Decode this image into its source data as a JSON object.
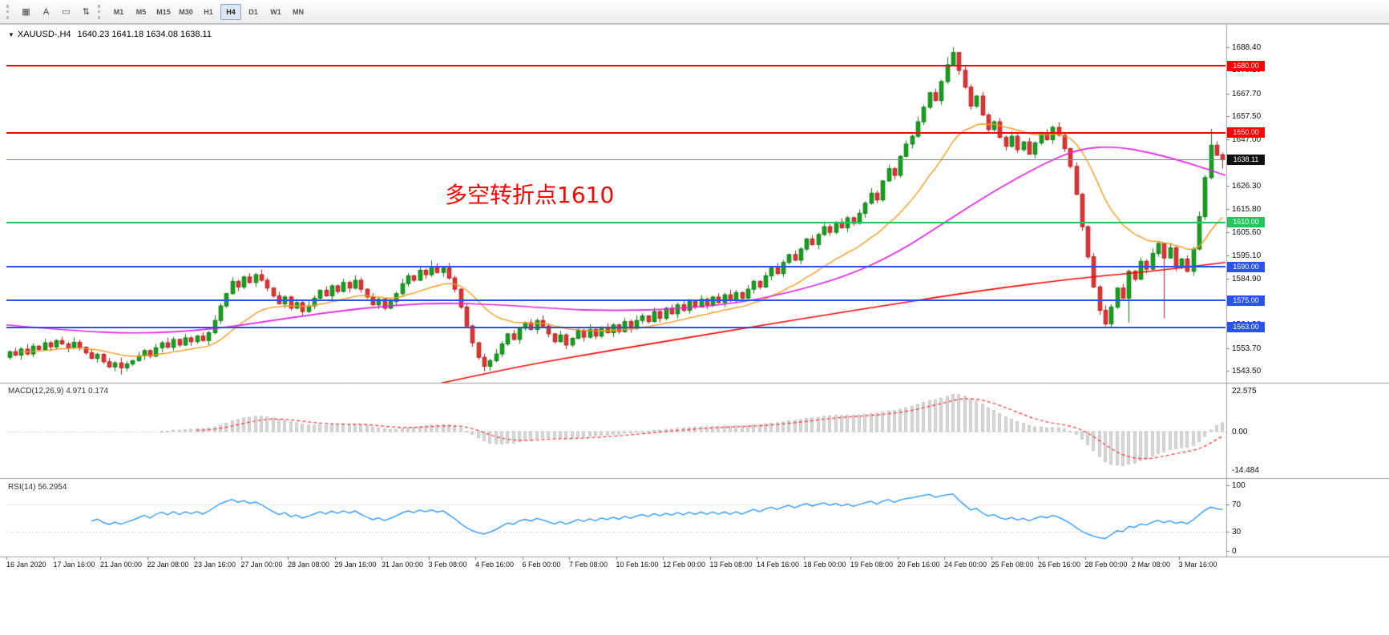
{
  "toolbar": {
    "icons": [
      {
        "name": "tile-windows-icon",
        "glyph": "▦"
      },
      {
        "name": "text-label-icon",
        "glyph": "A"
      },
      {
        "name": "frame-icon",
        "glyph": "▭"
      },
      {
        "name": "arrange-icon",
        "glyph": "⇅"
      }
    ],
    "timeframes": [
      "M1",
      "M5",
      "M15",
      "M30",
      "H1",
      "H4",
      "D1",
      "W1",
      "MN"
    ],
    "active_timeframe": "H4"
  },
  "chart": {
    "header": {
      "collapse_glyph": "▼",
      "symbol": "XAUUSD-,H4",
      "ohlc": "1640.23 1641.18 1634.08 1638.11"
    },
    "annotation": {
      "text": "多空转折点1610",
      "color": "#ff0000"
    }
  },
  "chart_data": {
    "type": "candlestick",
    "title": "XAUUSD- H4",
    "y_ticks": [
      "1688.40",
      "1678.20",
      "1667.70",
      "1657.50",
      "1647.00",
      "1636.90",
      "1626.30",
      "1615.80",
      "1605.60",
      "1595.10",
      "1584.90",
      "1574.40",
      "1564.20",
      "1553.70",
      "1543.50"
    ],
    "x_labels": [
      "16 Jan 2020",
      "17 Jan 16:00",
      "21 Jan 00:00",
      "22 Jan 08:00",
      "23 Jan 16:00",
      "27 Jan 00:00",
      "28 Jan 08:00",
      "29 Jan 16:00",
      "31 Jan 00:00",
      "3 Feb 08:00",
      "4 Feb 16:00",
      "6 Feb 00:00",
      "7 Feb 08:00",
      "10 Feb 16:00",
      "12 Feb 00:00",
      "13 Feb 08:00",
      "14 Feb 16:00",
      "18 Feb 00:00",
      "19 Feb 08:00",
      "20 Feb 16:00",
      "24 Feb 00:00",
      "25 Feb 08:00",
      "26 Feb 16:00",
      "28 Feb 00:00",
      "2 Mar 08:00",
      "3 Mar 16:00"
    ],
    "price_range": [
      1538.1,
      1697.7
    ],
    "open_first": 1549.5,
    "closes": [
      1552.0,
      1550.5,
      1553.2,
      1551.0,
      1554.5,
      1553.0,
      1556.0,
      1554.2,
      1557.0,
      1555.5,
      1553.8,
      1556.2,
      1554.0,
      1551.5,
      1549.0,
      1550.8,
      1547.5,
      1545.2,
      1547.0,
      1544.8,
      1546.5,
      1548.0,
      1550.2,
      1552.5,
      1550.0,
      1553.8,
      1556.0,
      1554.0,
      1557.5,
      1555.0,
      1558.2,
      1556.5,
      1559.0,
      1557.0,
      1560.5,
      1566.0,
      1572.5,
      1578.0,
      1583.5,
      1581.0,
      1585.5,
      1583.0,
      1586.5,
      1584.0,
      1580.5,
      1577.0,
      1573.5,
      1576.5,
      1571.5,
      1574.0,
      1570.0,
      1572.5,
      1576.0,
      1579.5,
      1577.0,
      1581.5,
      1579.0,
      1583.0,
      1580.5,
      1584.0,
      1580.0,
      1576.5,
      1573.0,
      1575.5,
      1571.5,
      1574.5,
      1578.0,
      1582.5,
      1586.0,
      1584.0,
      1588.5,
      1586.5,
      1590.0,
      1587.5,
      1589.5,
      1585.0,
      1580.0,
      1572.0,
      1563.5,
      1556.0,
      1549.5,
      1545.5,
      1548.0,
      1551.0,
      1555.5,
      1560.0,
      1557.5,
      1562.5,
      1565.0,
      1562.0,
      1566.0,
      1563.5,
      1560.0,
      1556.5,
      1559.5,
      1555.0,
      1558.0,
      1561.5,
      1558.5,
      1562.0,
      1559.0,
      1563.0,
      1560.5,
      1564.0,
      1561.0,
      1565.5,
      1562.5,
      1566.0,
      1568.0,
      1565.5,
      1570.0,
      1567.0,
      1571.5,
      1569.0,
      1573.0,
      1570.5,
      1574.5,
      1572.0,
      1575.5,
      1573.0,
      1576.5,
      1574.0,
      1577.5,
      1575.0,
      1578.5,
      1576.0,
      1580.0,
      1583.5,
      1581.0,
      1586.0,
      1589.5,
      1587.0,
      1592.0,
      1595.5,
      1593.0,
      1598.0,
      1602.5,
      1600.0,
      1604.5,
      1608.0,
      1605.5,
      1610.0,
      1607.5,
      1612.0,
      1609.5,
      1614.0,
      1618.5,
      1623.0,
      1620.0,
      1628.5,
      1634.0,
      1631.0,
      1639.5,
      1645.0,
      1648.5,
      1655.0,
      1661.5,
      1668.0,
      1664.5,
      1673.0,
      1680.5,
      1686.0,
      1678.0,
      1670.5,
      1662.0,
      1666.5,
      1658.0,
      1651.5,
      1655.0,
      1648.0,
      1644.0,
      1648.5,
      1642.5,
      1646.0,
      1640.5,
      1645.5,
      1650.0,
      1647.0,
      1652.5,
      1649.0,
      1643.0,
      1635.0,
      1622.5,
      1608.0,
      1594.5,
      1581.0,
      1570.5,
      1564.5,
      1572.0,
      1580.5,
      1576.0,
      1588.0,
      1584.5,
      1592.5,
      1589.0,
      1596.0,
      1600.5,
      1594.0,
      1598.5,
      1590.0,
      1593.5,
      1588.0,
      1598.0,
      1612.5,
      1630.0,
      1644.5,
      1640.0,
      1638.11
    ],
    "wick_high": [
      0.6,
      1.7,
      0.9,
      2.3,
      1.2,
      0.4,
      1.8,
      0.8
    ],
    "wick_low": [
      1.0,
      0.5,
      2.0,
      0.7,
      1.5,
      0.9,
      0.4,
      1.9
    ],
    "overrides": {
      "19": {
        "l": 1541.8
      },
      "72": {
        "h": 1592.8
      },
      "81": {
        "l": 1543.2
      },
      "160": {
        "h": 1684.0
      },
      "161": {
        "h": 1688.4
      },
      "162": {
        "h": 1683.0
      },
      "187": {
        "l": 1563.4
      },
      "191": {
        "l": 1565.0
      },
      "197": {
        "l": 1567.0
      },
      "205": {
        "h": 1651.8
      },
      "207": {
        "o": 1640.23,
        "h": 1641.18,
        "l": 1634.08,
        "c": 1638.11
      }
    },
    "colors": {
      "up": "#12a11b",
      "up_border": "#0b7a12",
      "down": "#e03232",
      "down_border": "#b31d1d",
      "ma_fast": "#f59a1c",
      "ma_mid": "#e020e0",
      "ma_slow": "#ff0000",
      "macd_hist_fill": "#d9d9d9",
      "macd_hist_border": "#a8a8a8",
      "macd_signal": "#ff2d2d",
      "rsi": "#1e90ff"
    },
    "h_lines": [
      {
        "price": 1680.0,
        "label": "1680.00",
        "color": "#ff0000"
      },
      {
        "price": 1650.0,
        "label": "1650.00",
        "color": "#ff0000"
      },
      {
        "price": 1610.0,
        "label": "1610.00",
        "color": "#22c55e"
      },
      {
        "price": 1590.0,
        "label": "1590.00",
        "color": "#2a52f0"
      },
      {
        "price": 1575.0,
        "label": "1575.00",
        "color": "#2a52f0"
      },
      {
        "price": 1563.0,
        "label": "1563.00",
        "color": "#2a52f0"
      }
    ],
    "current_price": {
      "value": 1638.11,
      "label": "1638.11",
      "line_color": "#6a8cae",
      "badge_color": "#101010"
    },
    "ma_fast_period": 20,
    "ma_mid_anchors": [
      [
        0,
        1564
      ],
      [
        0.05,
        1561.5
      ],
      [
        0.11,
        1560
      ],
      [
        0.17,
        1562
      ],
      [
        0.23,
        1567
      ],
      [
        0.29,
        1571.5
      ],
      [
        0.35,
        1574
      ],
      [
        0.41,
        1573
      ],
      [
        0.47,
        1570.5
      ],
      [
        0.53,
        1570.5
      ],
      [
        0.59,
        1573
      ],
      [
        0.64,
        1578
      ],
      [
        0.69,
        1586
      ],
      [
        0.73,
        1596
      ],
      [
        0.77,
        1610
      ],
      [
        0.81,
        1624
      ],
      [
        0.85,
        1636
      ],
      [
        0.88,
        1643
      ],
      [
        0.91,
        1644
      ],
      [
        0.94,
        1641
      ],
      [
        0.97,
        1636.5
      ],
      [
        1.0,
        1631
      ]
    ],
    "ma_slow_anchors": [
      [
        0.3,
        1531
      ],
      [
        0.4,
        1543.5
      ],
      [
        0.5,
        1553
      ],
      [
        0.6,
        1562
      ],
      [
        0.7,
        1571
      ],
      [
        0.8,
        1579.5
      ],
      [
        0.88,
        1585
      ],
      [
        0.94,
        1588
      ],
      [
        1.0,
        1592
      ]
    ],
    "macd": {
      "label": "MACD(12,26,9) 4.971 0.174",
      "params": [
        12,
        26,
        9
      ],
      "tick_top": "22.575",
      "tick_zero": "0.00",
      "tick_bottom": "-14.484"
    },
    "rsi": {
      "label": "RSI(14) 56.2954",
      "period": 14,
      "levels": [
        70,
        30
      ],
      "ticks": [
        "100",
        "70",
        "30",
        "0"
      ]
    }
  }
}
